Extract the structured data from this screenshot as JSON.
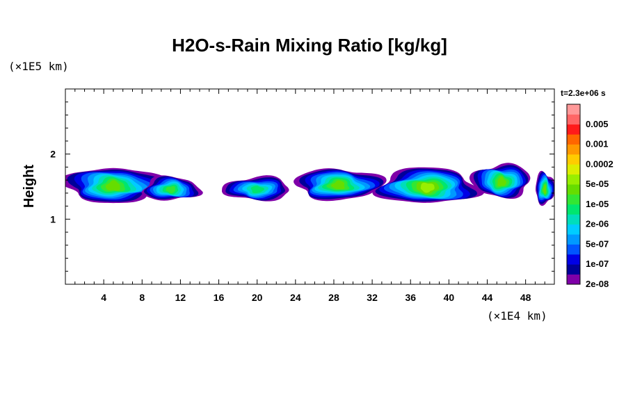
{
  "chart_data": {
    "type": "heatmap",
    "title": "H2O-s-Rain Mixing Ratio [kg/kg]",
    "xlabel": "",
    "ylabel": "Height",
    "x_unit": "(×1E4 km)",
    "y_unit": "(×1E5 km)",
    "time_label": "t=2.3e+06 s",
    "xlim": [
      0,
      51
    ],
    "ylim": [
      0,
      3
    ],
    "x_ticks": [
      "4",
      "8",
      "12",
      "16",
      "20",
      "24",
      "28",
      "32",
      "36",
      "40",
      "44",
      "48"
    ],
    "y_ticks": [
      "1",
      "2"
    ],
    "x_tick_values": [
      4,
      8,
      12,
      16,
      20,
      24,
      28,
      32,
      36,
      40,
      44,
      48
    ],
    "y_tick_values": [
      1,
      2
    ],
    "colorbar": {
      "levels": [
        {
          "color": "#7f00a8",
          "label": "2e-08"
        },
        {
          "color": "#000099",
          "label": ""
        },
        {
          "color": "#0000e6",
          "label": "1e-07"
        },
        {
          "color": "#0055ff",
          "label": ""
        },
        {
          "color": "#0099ff",
          "label": "5e-07"
        },
        {
          "color": "#00ccff",
          "label": ""
        },
        {
          "color": "#00ddbb",
          "label": "2e-06"
        },
        {
          "color": "#00e66e",
          "label": ""
        },
        {
          "color": "#33e633",
          "label": "1e-05"
        },
        {
          "color": "#66dd00",
          "label": ""
        },
        {
          "color": "#99ee00",
          "label": "5e-05"
        },
        {
          "color": "#ddee00",
          "label": ""
        },
        {
          "color": "#ffcc00",
          "label": "0.0002"
        },
        {
          "color": "#ff9900",
          "label": ""
        },
        {
          "color": "#ff6600",
          "label": "0.001"
        },
        {
          "color": "#ff1a1a",
          "label": ""
        },
        {
          "color": "#ff6666",
          "label": "0.005"
        },
        {
          "color": "#ff9999",
          "label": ""
        }
      ]
    },
    "cloud_bands": [
      {
        "x": [
          0,
          10
        ],
        "y_bottom": 1.2,
        "y_top": 1.8,
        "peak_level": 9
      },
      {
        "x": [
          8,
          14
        ],
        "y_bottom": 1.25,
        "y_top": 1.65,
        "peak_level": 8
      },
      {
        "x": [
          16.5,
          23.5
        ],
        "y_bottom": 1.25,
        "y_top": 1.65,
        "peak_level": 7
      },
      {
        "x": [
          24,
          33
        ],
        "y_bottom": 1.25,
        "y_top": 1.78,
        "peak_level": 9
      },
      {
        "x": [
          32.5,
          43
        ],
        "y_bottom": 1.18,
        "y_top": 1.78,
        "peak_level": 10
      },
      {
        "x": [
          42.5,
          48.5
        ],
        "y_bottom": 1.28,
        "y_top": 1.85,
        "peak_level": 9
      },
      {
        "x": [
          49,
          51
        ],
        "y_bottom": 1.18,
        "y_top": 1.72,
        "peak_level": 9
      }
    ]
  }
}
